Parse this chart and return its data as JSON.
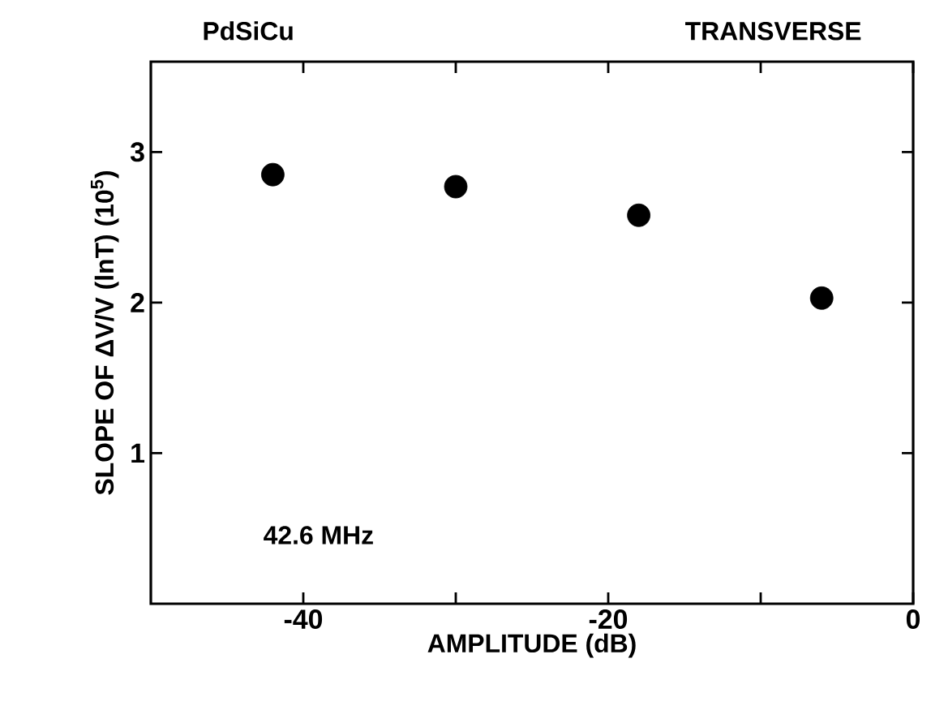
{
  "chart_data": {
    "type": "scatter",
    "title": "PdSiCu",
    "subtitle": "TRANSVERSE",
    "xlabel": "AMPLITUDE (dB)",
    "ylabel": "SLOPE OF ΔV/V (lnT) (10$^{5}$)",
    "annotations": [
      "42.6 MHz"
    ],
    "x": [
      -42,
      -30,
      -18,
      -6
    ],
    "values": [
      2.85,
      2.77,
      2.58,
      2.03
    ],
    "color": "#000000",
    "marker": "circle",
    "xlim": [
      -50,
      0
    ],
    "ylim": [
      0,
      3.6
    ],
    "xticks": [
      -40,
      {
        "value": -30,
        "label": null
      },
      -20,
      {
        "value": -10,
        "label": null
      },
      0
    ],
    "yticks": [
      1,
      2,
      3
    ]
  }
}
